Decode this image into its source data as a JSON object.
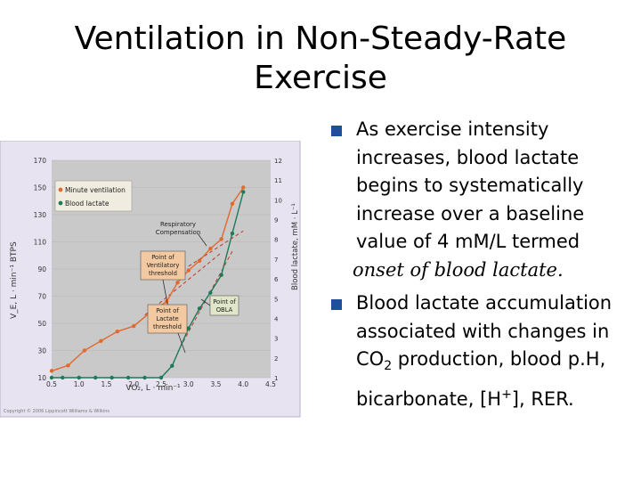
{
  "slide": {
    "title_line1": "Ventilation in Non-Steady-Rate",
    "title_line2": "Exercise"
  },
  "bullets": {
    "b1_text": "As exercise intensity increases, blood lactate begins to systematically increase over a baseline value of 4 mM/L termed",
    "b1_italic": "onset of blood lactate.",
    "b2_a": "Blood lactate accumulation associated with changes in CO",
    "b2_sub": "2",
    "b2_b": " production, blood p.H, bicarbonate, [H",
    "b2_sup": "+",
    "b2_c": "], RER."
  },
  "colors": {
    "bullet": "#1f4e9a",
    "plot_bg": "#c9c9c9",
    "frame_bg": "#e8e3f0",
    "orange": "#e06a2c",
    "green": "#1e7a57",
    "label_box": "#f2c9a0",
    "label_box_green": "#e0e6c8",
    "dash": "#c0392b"
  },
  "chart_data": {
    "type": "line",
    "xlabel": "VO₂, L · min⁻¹",
    "ylabel_left": "V_E, L · min⁻¹ BTPS",
    "ylabel_right": "Blood lactate, mM · L⁻¹",
    "x_ticks": [
      "0.5",
      "1.0",
      "1.5",
      "2.0",
      "2.5",
      "3.0",
      "3.5",
      "4.0",
      "4.5"
    ],
    "yleft_ticks": [
      "10",
      "30",
      "50",
      "70",
      "90",
      "110",
      "130",
      "150",
      "170"
    ],
    "yright_ticks": [
      "1",
      "2",
      "3",
      "4",
      "5",
      "6",
      "7",
      "8",
      "9",
      "10",
      "11",
      "12"
    ],
    "xlim": [
      0.5,
      4.5
    ],
    "ylim_left": [
      10,
      170
    ],
    "ylim_right": [
      1,
      12
    ],
    "legend": [
      "Minute ventilation",
      "Blood lactate"
    ],
    "series": [
      {
        "name": "Minute ventilation",
        "axis": "left",
        "x": [
          0.5,
          0.8,
          1.1,
          1.4,
          1.7,
          2.0,
          2.3,
          2.6,
          2.8,
          3.0,
          3.2,
          3.4,
          3.6,
          3.8,
          4.0
        ],
        "y": [
          15,
          19,
          30,
          37,
          44,
          48,
          58,
          66,
          80,
          89,
          96,
          105,
          112,
          138,
          150
        ]
      },
      {
        "name": "Blood lactate",
        "axis": "right",
        "x": [
          0.5,
          0.7,
          1.0,
          1.3,
          1.6,
          1.9,
          2.2,
          2.5,
          2.7,
          3.0,
          3.2,
          3.4,
          3.6,
          3.8,
          4.0
        ],
        "y": [
          1.0,
          1.0,
          1.0,
          1.0,
          1.0,
          1.0,
          1.0,
          1.0,
          1.6,
          3.5,
          4.5,
          5.3,
          6.2,
          8.3,
          10.4
        ]
      }
    ],
    "annotations": {
      "resp_comp": [
        "Respiratory",
        "Compensation"
      ],
      "vent_threshold": [
        "Point of",
        "Ventilatory",
        "threshold"
      ],
      "lactate_threshold": [
        "Point of",
        "Lactate",
        "threshold"
      ],
      "obla": [
        "Point of",
        "OBLA"
      ],
      "credit": "Copyright © 2006 Lippincott Williams & Wilkins"
    }
  }
}
